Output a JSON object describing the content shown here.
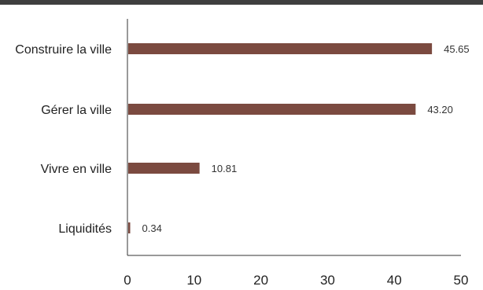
{
  "chart_data": {
    "type": "bar",
    "orientation": "horizontal",
    "categories": [
      "Construire la ville",
      "Gérer la ville",
      "Vivre en ville",
      "Liquidités"
    ],
    "values": [
      45.65,
      43.2,
      10.81,
      0.34
    ],
    "value_labels": [
      "45.65",
      "43.20",
      "10.81",
      "0.34"
    ],
    "xlim": [
      0,
      50
    ],
    "xticks": [
      0,
      10,
      20,
      30,
      40,
      50
    ],
    "grid": false,
    "legend": "none",
    "bar_color": "#7b4a40",
    "axis_color": "#333333"
  }
}
